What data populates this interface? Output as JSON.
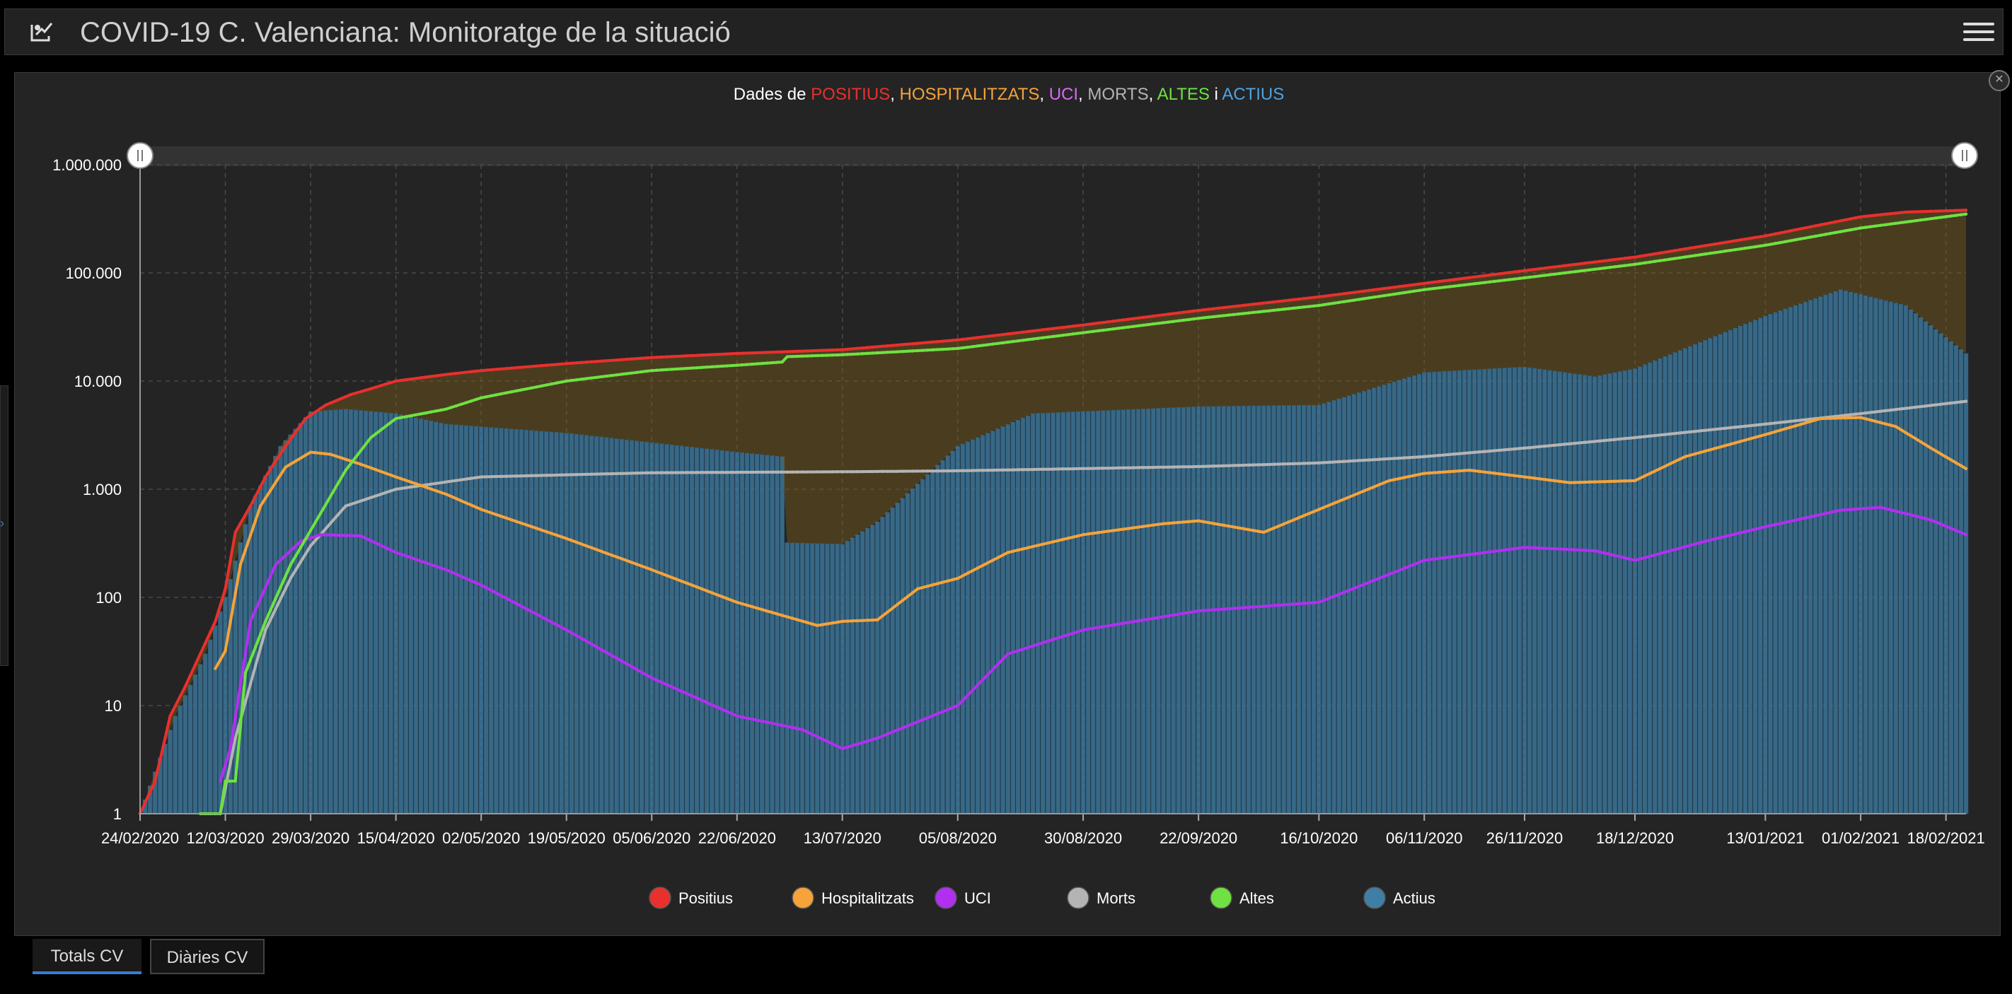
{
  "header": {
    "title": "COVID-19 C. Valenciana: Monitoratge de la situació",
    "icon": "logo-icon",
    "menu_icon": "hamburger-menu-icon"
  },
  "panel": {
    "close_icon": "close-icon"
  },
  "tabs": [
    {
      "label": "Totals CV",
      "active": true
    },
    {
      "label": "Diàries CV",
      "active": false
    }
  ],
  "colors": {
    "positius": "#e8302e",
    "hospitalitzats": "#f5a33a",
    "uci": "#b12ff0",
    "morts": "#b4b4b4",
    "altes": "#6fe142",
    "actius": "#3f7fa6",
    "background": "#242424"
  },
  "chart_data": {
    "type": "line",
    "title_segments": [
      {
        "text": "Dades de ",
        "color": "#ffffff"
      },
      {
        "text": "POSITIUS",
        "color": "#e8302e"
      },
      {
        "text": ", ",
        "color": "#ffffff"
      },
      {
        "text": "HOSPITALITZATS",
        "color": "#f5a33a"
      },
      {
        "text": ", ",
        "color": "#ffffff"
      },
      {
        "text": "UCI",
        "color": "#d86af5"
      },
      {
        "text": ", ",
        "color": "#ffffff"
      },
      {
        "text": "MORTS",
        "color": "#b4b4b4"
      },
      {
        "text": ", ",
        "color": "#ffffff"
      },
      {
        "text": "ALTES",
        "color": "#6fe142"
      },
      {
        "text": " i ",
        "color": "#ffffff"
      },
      {
        "text": "ACTIUS",
        "color": "#4fa3e0"
      }
    ],
    "y_scale": "log",
    "ylim": [
      1,
      1000000
    ],
    "y_ticks": [
      {
        "value": 1,
        "label": "1"
      },
      {
        "value": 10,
        "label": "10"
      },
      {
        "value": 100,
        "label": "100"
      },
      {
        "value": 1000,
        "label": "1.000"
      },
      {
        "value": 10000,
        "label": "10.000"
      },
      {
        "value": 100000,
        "label": "100.000"
      },
      {
        "value": 1000000,
        "label": "1.000.000"
      }
    ],
    "xlim": [
      "2020-02-24",
      "2021-02-22"
    ],
    "x_ticks": [
      "24/02/2020",
      "12/03/2020",
      "29/03/2020",
      "15/04/2020",
      "02/05/2020",
      "19/05/2020",
      "05/06/2020",
      "22/06/2020",
      "13/07/2020",
      "05/08/2020",
      "30/08/2020",
      "22/09/2020",
      "16/10/2020",
      "06/11/2020",
      "26/11/2020",
      "18/12/2020",
      "13/01/2021",
      "01/02/2021",
      "18/02/2021"
    ],
    "grid": true,
    "legend_position": "bottom",
    "series": [
      {
        "name": "Positius",
        "type": "line",
        "color": "#e8302e",
        "points": [
          [
            "2020-02-24",
            1
          ],
          [
            "2020-02-27",
            2
          ],
          [
            "2020-03-01",
            8
          ],
          [
            "2020-03-04",
            15
          ],
          [
            "2020-03-07",
            30
          ],
          [
            "2020-03-10",
            60
          ],
          [
            "2020-03-12",
            120
          ],
          [
            "2020-03-14",
            400
          ],
          [
            "2020-03-17",
            700
          ],
          [
            "2020-03-20",
            1300
          ],
          [
            "2020-03-24",
            2500
          ],
          [
            "2020-03-28",
            4500
          ],
          [
            "2020-04-01",
            6000
          ],
          [
            "2020-04-06",
            7500
          ],
          [
            "2020-04-10",
            8500
          ],
          [
            "2020-04-15",
            10000
          ],
          [
            "2020-04-25",
            11500
          ],
          [
            "2020-05-02",
            12500
          ],
          [
            "2020-05-19",
            14500
          ],
          [
            "2020-06-05",
            16500
          ],
          [
            "2020-06-22",
            18000
          ],
          [
            "2020-07-13",
            19500
          ],
          [
            "2020-08-05",
            24000
          ],
          [
            "2020-08-30",
            33000
          ],
          [
            "2020-09-22",
            45000
          ],
          [
            "2020-10-16",
            60000
          ],
          [
            "2020-11-06",
            80000
          ],
          [
            "2020-11-26",
            105000
          ],
          [
            "2020-12-18",
            140000
          ],
          [
            "2021-01-13",
            220000
          ],
          [
            "2021-02-01",
            330000
          ],
          [
            "2021-02-10",
            365000
          ],
          [
            "2021-02-22",
            380000
          ]
        ]
      },
      {
        "name": "Hospitalitzats",
        "type": "line",
        "color": "#f5a33a",
        "points": [
          [
            "2020-03-10",
            22
          ],
          [
            "2020-03-12",
            32
          ],
          [
            "2020-03-15",
            200
          ],
          [
            "2020-03-19",
            700
          ],
          [
            "2020-03-24",
            1600
          ],
          [
            "2020-03-29",
            2200
          ],
          [
            "2020-04-02",
            2100
          ],
          [
            "2020-04-08",
            1700
          ],
          [
            "2020-04-15",
            1300
          ],
          [
            "2020-04-25",
            900
          ],
          [
            "2020-05-02",
            650
          ],
          [
            "2020-05-19",
            350
          ],
          [
            "2020-06-05",
            180
          ],
          [
            "2020-06-22",
            90
          ],
          [
            "2020-07-08",
            55
          ],
          [
            "2020-07-13",
            60
          ],
          [
            "2020-07-20",
            62
          ],
          [
            "2020-07-28",
            120
          ],
          [
            "2020-08-05",
            150
          ],
          [
            "2020-08-15",
            260
          ],
          [
            "2020-08-30",
            380
          ],
          [
            "2020-09-15",
            480
          ],
          [
            "2020-09-22",
            510
          ],
          [
            "2020-10-05",
            400
          ],
          [
            "2020-10-16",
            650
          ],
          [
            "2020-10-30",
            1200
          ],
          [
            "2020-11-06",
            1400
          ],
          [
            "2020-11-15",
            1500
          ],
          [
            "2020-11-26",
            1300
          ],
          [
            "2020-12-05",
            1150
          ],
          [
            "2020-12-18",
            1200
          ],
          [
            "2020-12-28",
            2000
          ],
          [
            "2021-01-13",
            3200
          ],
          [
            "2021-01-24",
            4500
          ],
          [
            "2021-02-01",
            4600
          ],
          [
            "2021-02-08",
            3800
          ],
          [
            "2021-02-15",
            2400
          ],
          [
            "2021-02-22",
            1550
          ]
        ]
      },
      {
        "name": "UCI",
        "type": "line",
        "color": "#b12ff0",
        "points": [
          [
            "2020-03-11",
            2
          ],
          [
            "2020-03-13",
            4
          ],
          [
            "2020-03-17",
            60
          ],
          [
            "2020-03-22",
            200
          ],
          [
            "2020-03-27",
            330
          ],
          [
            "2020-03-31",
            380
          ],
          [
            "2020-04-08",
            370
          ],
          [
            "2020-04-15",
            260
          ],
          [
            "2020-04-25",
            180
          ],
          [
            "2020-05-02",
            130
          ],
          [
            "2020-05-19",
            50
          ],
          [
            "2020-06-05",
            18
          ],
          [
            "2020-06-22",
            8
          ],
          [
            "2020-07-05",
            6
          ],
          [
            "2020-07-13",
            4
          ],
          [
            "2020-07-20",
            5
          ],
          [
            "2020-08-05",
            10
          ],
          [
            "2020-08-15",
            30
          ],
          [
            "2020-08-30",
            50
          ],
          [
            "2020-09-22",
            75
          ],
          [
            "2020-10-16",
            90
          ],
          [
            "2020-11-06",
            220
          ],
          [
            "2020-11-26",
            290
          ],
          [
            "2020-12-10",
            270
          ],
          [
            "2020-12-18",
            220
          ],
          [
            "2021-01-01",
            330
          ],
          [
            "2021-01-13",
            450
          ],
          [
            "2021-01-28",
            640
          ],
          [
            "2021-02-05",
            680
          ],
          [
            "2021-02-15",
            520
          ],
          [
            "2021-02-22",
            380
          ]
        ]
      },
      {
        "name": "Morts",
        "type": "line",
        "color": "#b4b4b4",
        "points": [
          [
            "2020-03-11",
            1
          ],
          [
            "2020-03-14",
            5
          ],
          [
            "2020-03-20",
            50
          ],
          [
            "2020-03-25",
            150
          ],
          [
            "2020-03-29",
            300
          ],
          [
            "2020-04-05",
            700
          ],
          [
            "2020-04-15",
            1000
          ],
          [
            "2020-05-02",
            1300
          ],
          [
            "2020-06-05",
            1420
          ],
          [
            "2020-07-13",
            1450
          ],
          [
            "2020-08-05",
            1480
          ],
          [
            "2020-09-22",
            1620
          ],
          [
            "2020-10-16",
            1750
          ],
          [
            "2020-11-06",
            2000
          ],
          [
            "2020-11-26",
            2400
          ],
          [
            "2020-12-18",
            3000
          ],
          [
            "2021-01-13",
            4000
          ],
          [
            "2021-02-01",
            5000
          ],
          [
            "2021-02-22",
            6500
          ]
        ]
      },
      {
        "name": "Altes",
        "type": "line",
        "color": "#6fe142",
        "points": [
          [
            "2020-03-07",
            1
          ],
          [
            "2020-03-11",
            1
          ],
          [
            "2020-03-12",
            2
          ],
          [
            "2020-03-14",
            2
          ],
          [
            "2020-03-16",
            20
          ],
          [
            "2020-03-20",
            60
          ],
          [
            "2020-03-25",
            200
          ],
          [
            "2020-03-30",
            500
          ],
          [
            "2020-04-05",
            1500
          ],
          [
            "2020-04-10",
            3000
          ],
          [
            "2020-04-15",
            4500
          ],
          [
            "2020-04-25",
            5500
          ],
          [
            "2020-05-02",
            7000
          ],
          [
            "2020-05-19",
            10000
          ],
          [
            "2020-06-05",
            12500
          ],
          [
            "2020-06-22",
            14000
          ],
          [
            "2020-07-01",
            15000
          ],
          [
            "2020-07-02",
            16800
          ],
          [
            "2020-07-13",
            17500
          ],
          [
            "2020-08-05",
            20000
          ],
          [
            "2020-08-30",
            28000
          ],
          [
            "2020-09-22",
            38000
          ],
          [
            "2020-10-16",
            50000
          ],
          [
            "2020-11-06",
            70000
          ],
          [
            "2020-11-26",
            90000
          ],
          [
            "2020-12-18",
            120000
          ],
          [
            "2021-01-13",
            180000
          ],
          [
            "2021-02-01",
            260000
          ],
          [
            "2021-02-22",
            350000
          ]
        ]
      },
      {
        "name": "Actius",
        "type": "bar",
        "color": "#3f7fa6",
        "points": [
          [
            "2020-02-24",
            1
          ],
          [
            "2020-03-02",
            8
          ],
          [
            "2020-03-08",
            30
          ],
          [
            "2020-03-12",
            100
          ],
          [
            "2020-03-17",
            700
          ],
          [
            "2020-03-23",
            2500
          ],
          [
            "2020-03-29",
            5200
          ],
          [
            "2020-04-05",
            5500
          ],
          [
            "2020-04-15",
            5000
          ],
          [
            "2020-04-25",
            4000
          ],
          [
            "2020-05-19",
            3300
          ],
          [
            "2020-06-22",
            2200
          ],
          [
            "2020-07-01",
            2000
          ],
          [
            "2020-07-02",
            320
          ],
          [
            "2020-07-13",
            310
          ],
          [
            "2020-07-20",
            500
          ],
          [
            "2020-08-05",
            2500
          ],
          [
            "2020-08-20",
            5000
          ],
          [
            "2020-09-22",
            5800
          ],
          [
            "2020-10-16",
            6000
          ],
          [
            "2020-11-06",
            12000
          ],
          [
            "2020-11-26",
            13500
          ],
          [
            "2020-12-10",
            11000
          ],
          [
            "2020-12-18",
            13000
          ],
          [
            "2021-01-13",
            40000
          ],
          [
            "2021-01-28",
            70000
          ],
          [
            "2021-02-10",
            50000
          ],
          [
            "2021-02-22",
            18000
          ]
        ]
      }
    ]
  }
}
